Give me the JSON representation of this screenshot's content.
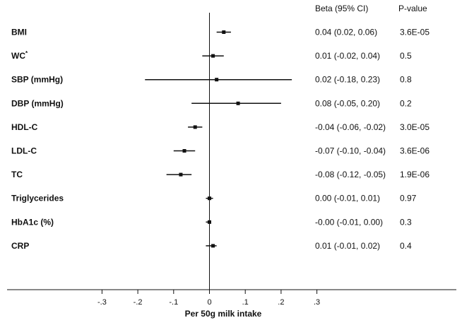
{
  "chart_data": {
    "type": "forest",
    "header": {
      "estimate": "Beta (95% CI)",
      "pvalue": "P-value"
    },
    "xlabel": "Per 50g milk intake",
    "xlim": [
      -0.3,
      0.3
    ],
    "xticks": [
      {
        "value": -0.3,
        "label": "-.3"
      },
      {
        "value": -0.2,
        "label": "-.2"
      },
      {
        "value": -0.1,
        "label": "-.1"
      },
      {
        "value": 0,
        "label": "0"
      },
      {
        "value": 0.1,
        "label": ".1"
      },
      {
        "value": 0.2,
        "label": ".2"
      },
      {
        "value": 0.3,
        "label": ".3"
      }
    ],
    "rows": [
      {
        "label": "BMI",
        "sup": "",
        "beta": 0.04,
        "lower": 0.02,
        "upper": 0.06,
        "ci_text": "0.04 (0.02, 0.06)",
        "p_text": "3.6E-05"
      },
      {
        "label": "WC",
        "sup": "*",
        "beta": 0.01,
        "lower": -0.02,
        "upper": 0.04,
        "ci_text": "0.01 (-0.02, 0.04)",
        "p_text": "0.5"
      },
      {
        "label": "SBP (mmHg)",
        "sup": "",
        "beta": 0.02,
        "lower": -0.18,
        "upper": 0.23,
        "ci_text": "0.02 (-0.18, 0.23)",
        "p_text": "0.8"
      },
      {
        "label": "DBP (mmHg)",
        "sup": "",
        "beta": 0.08,
        "lower": -0.05,
        "upper": 0.2,
        "ci_text": "0.08 (-0.05, 0.20)",
        "p_text": "0.2"
      },
      {
        "label": "HDL-C",
        "sup": "",
        "beta": -0.04,
        "lower": -0.06,
        "upper": -0.02,
        "ci_text": "-0.04 (-0.06, -0.02)",
        "p_text": "3.0E-05"
      },
      {
        "label": "LDL-C",
        "sup": "",
        "beta": -0.07,
        "lower": -0.1,
        "upper": -0.04,
        "ci_text": "-0.07 (-0.10, -0.04)",
        "p_text": "3.6E-06"
      },
      {
        "label": "TC",
        "sup": "",
        "beta": -0.08,
        "lower": -0.12,
        "upper": -0.05,
        "ci_text": "-0.08 (-0.12, -0.05)",
        "p_text": "1.9E-06"
      },
      {
        "label": "Triglycerides",
        "sup": "",
        "beta": 0.0,
        "lower": -0.01,
        "upper": 0.01,
        "ci_text": "0.00 (-0.01, 0.01)",
        "p_text": "0.97"
      },
      {
        "label": "HbA1c (%)",
        "sup": "",
        "beta": 0.0,
        "lower": -0.01,
        "upper": 0.0,
        "ci_text": "-0.00 (-0.01, 0.00)",
        "p_text": "0.3"
      },
      {
        "label": "CRP",
        "sup": "",
        "beta": 0.01,
        "lower": -0.01,
        "upper": 0.02,
        "ci_text": "0.01 (-0.01, 0.02)",
        "p_text": "0.4"
      }
    ]
  }
}
